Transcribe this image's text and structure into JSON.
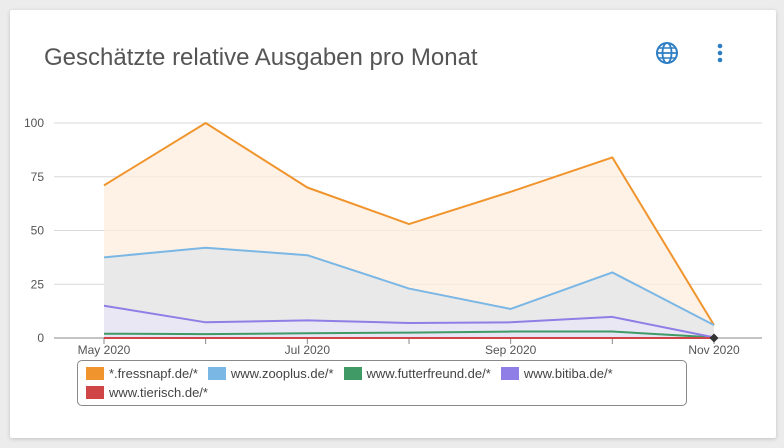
{
  "card": {
    "title": "Geschätzte relative Ausgaben pro Monat"
  },
  "icons": {
    "globe": "globe-icon",
    "menu": "more-vertical-icon"
  },
  "colors": {
    "accent": "#2f7ec4",
    "grid": "#d9d9d9",
    "axis": "#888888"
  },
  "chart_data": {
    "type": "area",
    "title": "Geschätzte relative Ausgaben pro Monat",
    "xlabel": "",
    "ylabel": "",
    "x": [
      "2020-05",
      "2020-06",
      "2020-07",
      "2020-08",
      "2020-09",
      "2020-10",
      "2020-11"
    ],
    "x_tick_labels": [
      {
        "x": "2020-05",
        "label": "May 2020"
      },
      {
        "x": "2020-07",
        "label": "Jul 2020"
      },
      {
        "x": "2020-09",
        "label": "Sep 2020"
      },
      {
        "x": "2020-11",
        "label": "Nov 2020"
      }
    ],
    "ylim": [
      0,
      100
    ],
    "y_ticks": [
      0,
      25,
      50,
      75,
      100
    ],
    "grid": true,
    "legend_position": "bottom",
    "series": [
      {
        "name": "*.fressnapf.de/*",
        "color": "#f0952e",
        "fill": "#fdeedd",
        "values": [
          71,
          100,
          70,
          53,
          68,
          84,
          6
        ]
      },
      {
        "name": "www.zooplus.de/*",
        "color": "#7ab7e5",
        "fill": "#e3e6ea",
        "values": [
          37.5,
          42,
          38.5,
          23,
          13.5,
          30.5,
          6
        ]
      },
      {
        "name": "www.futterfreund.de/*",
        "color": "#3f9a66",
        "fill": "#dde2e8",
        "values": [
          2,
          1.8,
          2.2,
          2.5,
          3,
          3,
          0.3
        ]
      },
      {
        "name": "www.bitiba.de/*",
        "color": "#8e7ee6",
        "fill": "#e8e6f5",
        "values": [
          15,
          7.3,
          8.2,
          7,
          7.3,
          9.8,
          0.3
        ]
      },
      {
        "name": "www.tierisch.de/*",
        "color": "#d04545",
        "fill": "#f3dcdc",
        "values": [
          0,
          0,
          0,
          0,
          0,
          0,
          0
        ]
      }
    ]
  }
}
